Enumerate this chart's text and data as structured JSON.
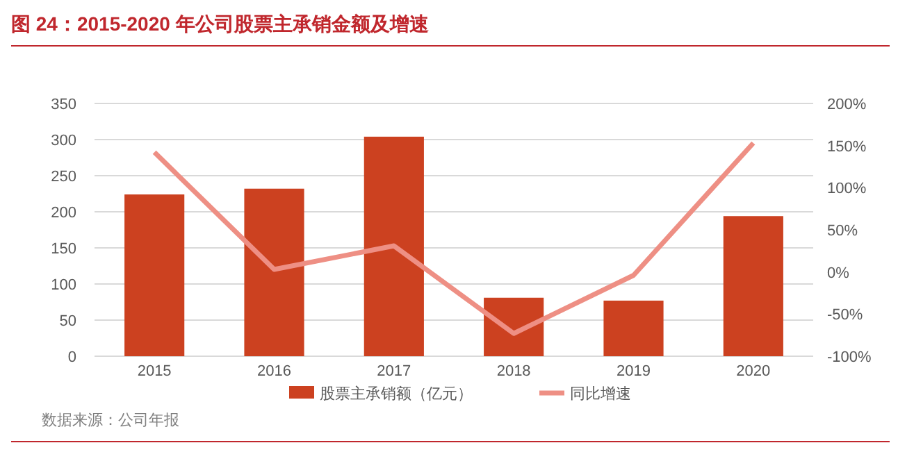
{
  "chart_data": {
    "type": "bar",
    "title": "图 24：2015-2020 年公司股票主承销金额及增速",
    "categories": [
      "2015",
      "2016",
      "2017",
      "2018",
      "2019",
      "2020"
    ],
    "series": [
      {
        "name": "股票主承销额（亿元）",
        "color": "#cc4120",
        "values": [
          224,
          232,
          304,
          81,
          77,
          194
        ]
      },
      {
        "name": "同比增速",
        "type": "line",
        "axis": "y2",
        "color": "#ee8f84",
        "values": [
          142,
          3,
          31,
          -73,
          -4,
          153
        ]
      }
    ],
    "ylim": [
      0,
      350
    ],
    "yticks": [
      0,
      50,
      100,
      150,
      200,
      250,
      300,
      350
    ],
    "y2lim": [
      -100,
      200
    ],
    "y2ticks": [
      {
        "value": -100,
        "label": "-100%"
      },
      {
        "value": -50,
        "label": "-50%"
      },
      {
        "value": 0,
        "label": "0%"
      },
      {
        "value": 50,
        "label": "50%"
      },
      {
        "value": 100,
        "label": "100%"
      },
      {
        "value": 150,
        "label": "150%"
      },
      {
        "value": 200,
        "label": "200%"
      }
    ],
    "grid": "y",
    "legend": "bottom",
    "marker": "none",
    "line_style": "solid",
    "annotations": [
      "数据来源：公司年报"
    ]
  }
}
